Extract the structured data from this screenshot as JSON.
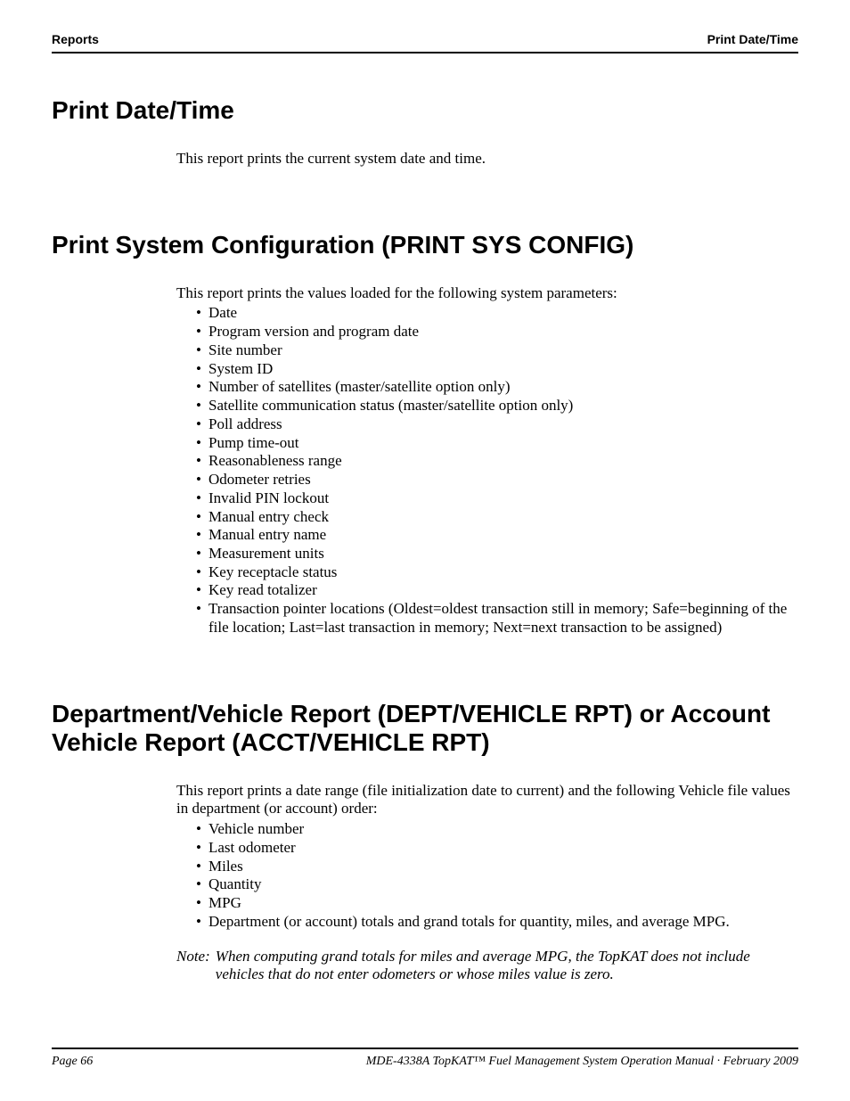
{
  "header": {
    "left": "Reports",
    "right": "Print Date/Time"
  },
  "sections": {
    "s1": {
      "heading": "Print Date/Time",
      "intro": "This report prints the current system date and time."
    },
    "s2": {
      "heading": "Print System Configuration (PRINT SYS CONFIG)",
      "intro": "This report prints the values loaded for the following system parameters:",
      "items": [
        "Date",
        "Program version and program date",
        "Site number",
        "System ID",
        "Number of satellites (master/satellite option only)",
        "Satellite communication status (master/satellite option only)",
        "Poll address",
        "Pump time-out",
        "Reasonableness range",
        "Odometer retries",
        "Invalid PIN lockout",
        "Manual entry check",
        "Manual entry name",
        "Measurement units",
        "Key receptacle status",
        "Key read totalizer",
        "Transaction pointer locations (Oldest=oldest transaction still in memory; Safe=beginning of the file location; Last=last transaction in memory; Next=next transaction to be assigned)"
      ]
    },
    "s3": {
      "heading": "Department/Vehicle Report (DEPT/VEHICLE RPT) or Account Vehicle Report (ACCT/VEHICLE RPT)",
      "intro": "This report prints a date range (file initialization date to current) and the following Vehicle file values in department (or account) order:",
      "items": [
        "Vehicle number",
        "Last odometer",
        "Miles",
        "Quantity",
        "MPG",
        "Department (or account) totals and grand totals for quantity, miles, and average MPG."
      ],
      "note_label": "Note:",
      "note_body": "When computing grand totals for miles and average MPG, the TopKAT does not include vehicles that do not enter odometers or whose miles value is zero."
    }
  },
  "footer": {
    "left": "Page 66",
    "right": "MDE-4338A TopKAT™ Fuel Management System Operation Manual · February 2009"
  }
}
